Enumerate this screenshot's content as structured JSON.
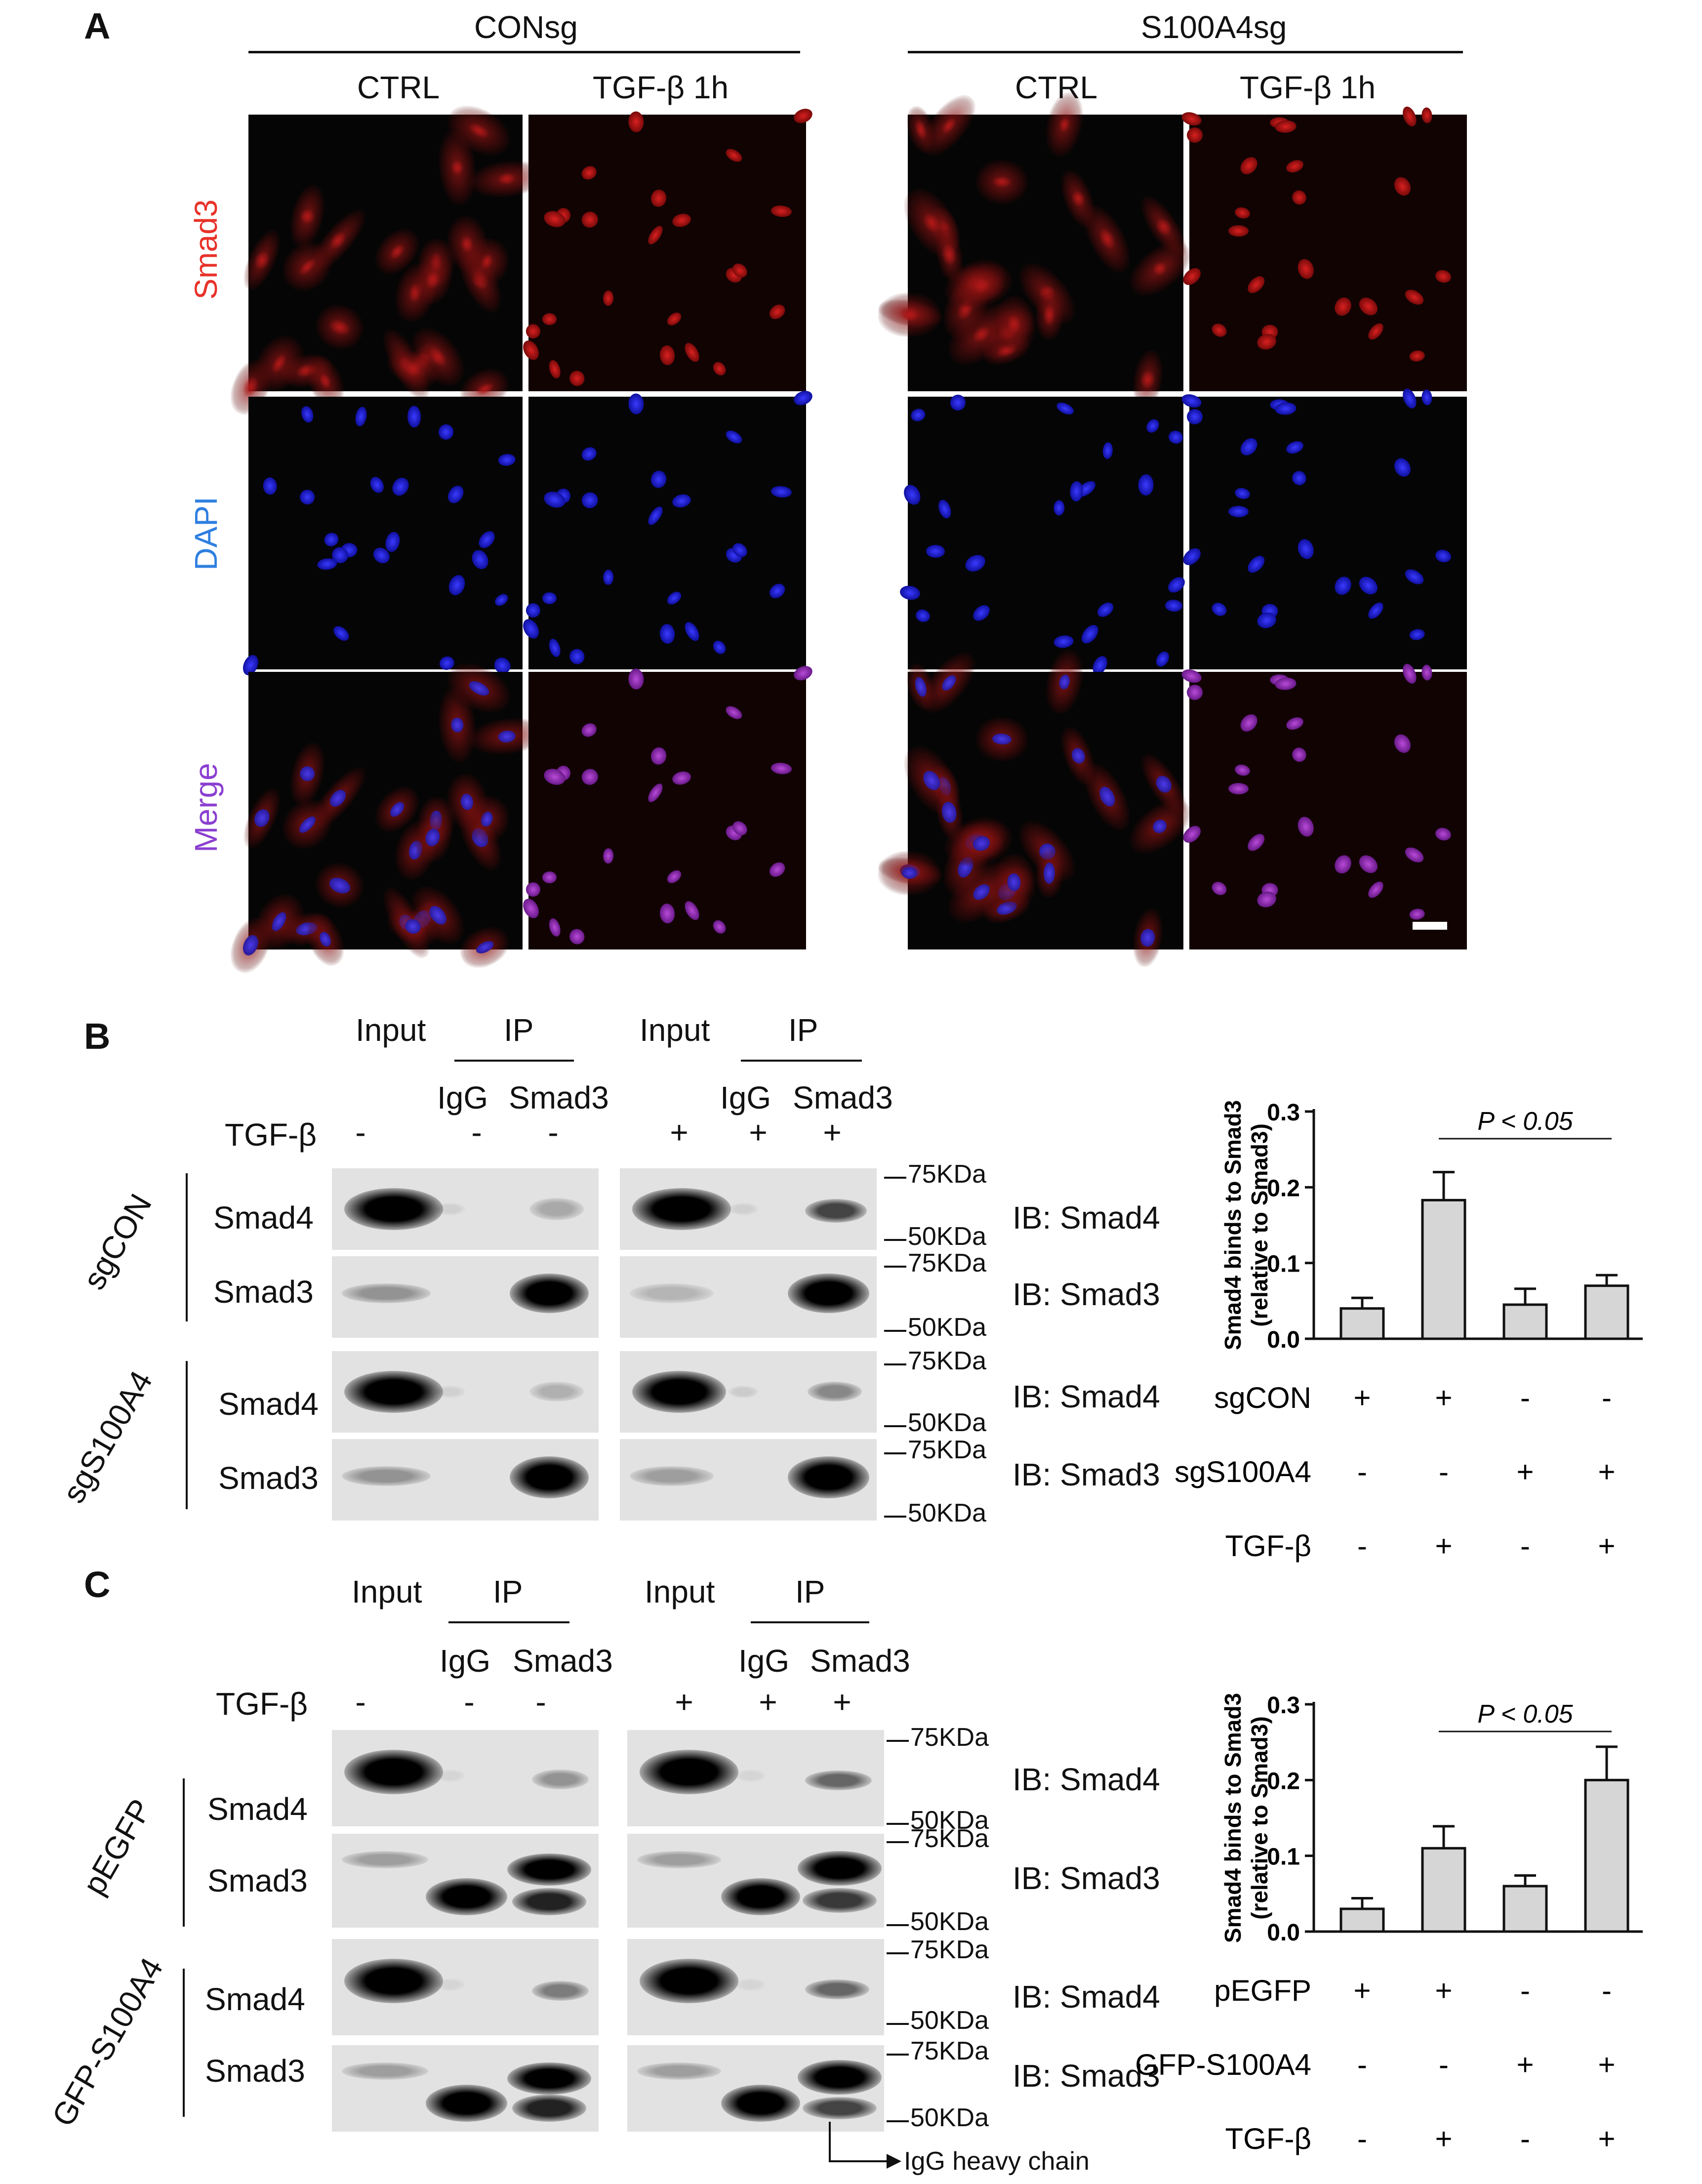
{
  "panelA": {
    "label": "A",
    "groups": [
      "CONsg",
      "S100A4sg"
    ],
    "columns": [
      "CTRL",
      "TGF-β 1h",
      "CTRL",
      "TGF-β 1h"
    ],
    "rows": [
      "Smad3",
      "DAPI",
      "Merge"
    ],
    "row_colors": [
      "#e8322a",
      "#2f7fe0",
      "#8b3fd0"
    ]
  },
  "panelB": {
    "label": "B",
    "input": "Input",
    "ip": "IP",
    "igg": "IgG",
    "smad3": "Smad3",
    "tgf": "TGF-β",
    "tgf_left": [
      "-",
      "-",
      "-"
    ],
    "tgf_right": [
      "+",
      "+",
      "+"
    ],
    "groups": [
      "sgCON",
      "sgS100A4"
    ],
    "blot_rows": [
      "Smad4",
      "Smad3",
      "Smad4",
      "Smad3"
    ],
    "ib": [
      "IB: Smad4",
      "IB: Smad3",
      "IB: Smad4",
      "IB: Smad3"
    ],
    "mw": [
      "75KDa",
      "50KDa",
      "75KDa",
      "50KDa",
      "75KDa",
      "50KDa",
      "75KDa",
      "50KDa"
    ]
  },
  "panelC": {
    "label": "C",
    "input": "Input",
    "ip": "IP",
    "igg": "IgG",
    "smad3": "Smad3",
    "tgf": "TGF-β",
    "tgf_left": [
      "-",
      "-",
      "-"
    ],
    "tgf_right": [
      "+",
      "+",
      "+"
    ],
    "groups": [
      "pEGFP",
      "GFP-S100A4"
    ],
    "blot_rows": [
      "Smad4",
      "Smad3",
      "Smad4",
      "Smad3"
    ],
    "ib": [
      "IB: Smad4",
      "IB: Smad3",
      "IB: Smad4",
      "IB: Smad3"
    ],
    "mw": [
      "75KDa",
      "50KDa",
      "75KDa",
      "50KDa",
      "75KDa",
      "50KDa",
      "75KDa",
      "50KDa"
    ],
    "heavy_chain": "IgG heavy chain"
  },
  "chart_data": [
    {
      "type": "bar",
      "ylabel": "Smad4 binds to Smad3 (relative to Smad3)",
      "ylabel_lines": [
        "Smad4 binds to Smad3",
        "(relative to Smad3)"
      ],
      "yticks": [
        "0.0",
        "0.1",
        "0.2",
        "0.3"
      ],
      "ylim": [
        0,
        0.3
      ],
      "values": [
        0.04,
        0.183,
        0.045,
        0.07
      ],
      "errors": [
        0.014,
        0.037,
        0.021,
        0.014
      ],
      "annotation": "P < 0.05",
      "annotation_bars": [
        1,
        3
      ],
      "conditions": [
        {
          "name": "sgCON",
          "marks": [
            "+",
            "+",
            "-",
            "-"
          ]
        },
        {
          "name": "sgS100A4",
          "marks": [
            "-",
            "-",
            "+",
            "+"
          ]
        },
        {
          "name": "TGF-β",
          "marks": [
            "-",
            "+",
            "-",
            "+"
          ]
        }
      ]
    },
    {
      "type": "bar",
      "ylabel": "Smad4 binds to Smad3 (relative to Smad3)",
      "ylabel_lines": [
        "Smad4 binds to Smad3",
        "(relative to Smad3)"
      ],
      "yticks": [
        "0.0",
        "0.1",
        "0.2",
        "0.3"
      ],
      "ylim": [
        0,
        0.3
      ],
      "values": [
        0.03,
        0.11,
        0.06,
        0.2
      ],
      "errors": [
        0.014,
        0.029,
        0.014,
        0.044
      ],
      "annotation": "P < 0.05",
      "annotation_bars": [
        1,
        3
      ],
      "conditions": [
        {
          "name": "pEGFP",
          "marks": [
            "+",
            "+",
            "-",
            "-"
          ]
        },
        {
          "name": "GFP-S100A4",
          "marks": [
            "-",
            "-",
            "+",
            "+"
          ]
        },
        {
          "name": "TGF-β",
          "marks": [
            "-",
            "+",
            "-",
            "+"
          ]
        }
      ]
    }
  ]
}
